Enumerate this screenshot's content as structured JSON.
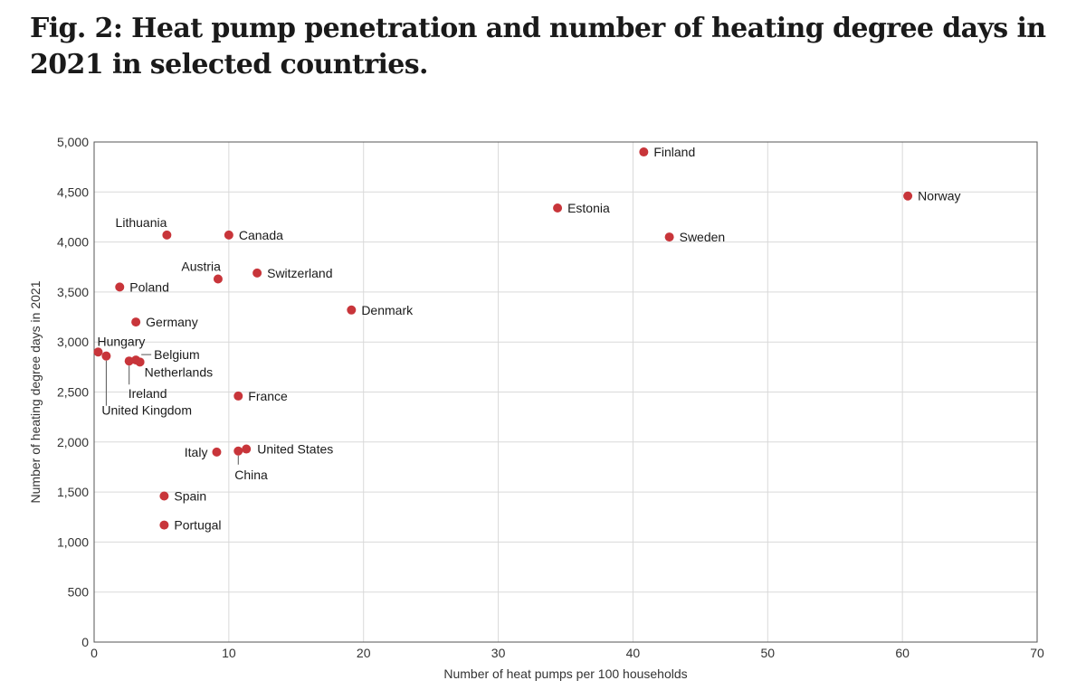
{
  "title": "Fig. 2: Heat pump penetration and number of heating degree days in 2021 in selected countries.",
  "colors": {
    "point": "#c8353a",
    "grid": "#d9d9d9",
    "frame": "#555555",
    "leader": "#555555"
  },
  "chart_data": {
    "type": "scatter",
    "xlabel": "Number of heat pumps per 100 households",
    "ylabel": "Number of heating degree days in 2021",
    "xlim": [
      0,
      70
    ],
    "ylim": [
      0,
      5000
    ],
    "xticks": [
      0,
      10,
      20,
      30,
      40,
      50,
      60,
      70
    ],
    "yticks": [
      0,
      500,
      1000,
      1500,
      2000,
      2500,
      3000,
      3500,
      4000,
      4500,
      5000
    ],
    "xtick_labels": [
      "0",
      "10",
      "20",
      "30",
      "40",
      "50",
      "60",
      "70"
    ],
    "ytick_labels": [
      "0",
      "500",
      "1,000",
      "1,500",
      "2,000",
      "2,500",
      "3,000",
      "3,500",
      "4,000",
      "4,500",
      "5,000"
    ],
    "grid": true,
    "points": [
      {
        "label": "Finland",
        "x": 40.8,
        "y": 4900
      },
      {
        "label": "Norway",
        "x": 60.4,
        "y": 4460
      },
      {
        "label": "Estonia",
        "x": 34.4,
        "y": 4340
      },
      {
        "label": "Sweden",
        "x": 42.7,
        "y": 4050
      },
      {
        "label": "Lithuania",
        "x": 5.4,
        "y": 4070
      },
      {
        "label": "Canada",
        "x": 10.0,
        "y": 4070
      },
      {
        "label": "Austria",
        "x": 9.2,
        "y": 3630
      },
      {
        "label": "Switzerland",
        "x": 12.1,
        "y": 3690
      },
      {
        "label": "Poland",
        "x": 1.9,
        "y": 3550
      },
      {
        "label": "Denmark",
        "x": 19.1,
        "y": 3320
      },
      {
        "label": "Germany",
        "x": 3.1,
        "y": 3200
      },
      {
        "label": "Hungary",
        "x": 0.3,
        "y": 2900
      },
      {
        "label": "United Kingdom",
        "x": 0.9,
        "y": 2860
      },
      {
        "label": "Belgium",
        "x": 3.1,
        "y": 2820
      },
      {
        "label": "Ireland",
        "x": 2.6,
        "y": 2810
      },
      {
        "label": "Netherlands",
        "x": 3.4,
        "y": 2800
      },
      {
        "label": "France",
        "x": 10.7,
        "y": 2460
      },
      {
        "label": "United States",
        "x": 11.3,
        "y": 1930
      },
      {
        "label": "China",
        "x": 10.7,
        "y": 1910
      },
      {
        "label": "Italy",
        "x": 9.1,
        "y": 1900
      },
      {
        "label": "Spain",
        "x": 5.2,
        "y": 1460
      },
      {
        "label": "Portugal",
        "x": 5.2,
        "y": 1170
      }
    ]
  }
}
